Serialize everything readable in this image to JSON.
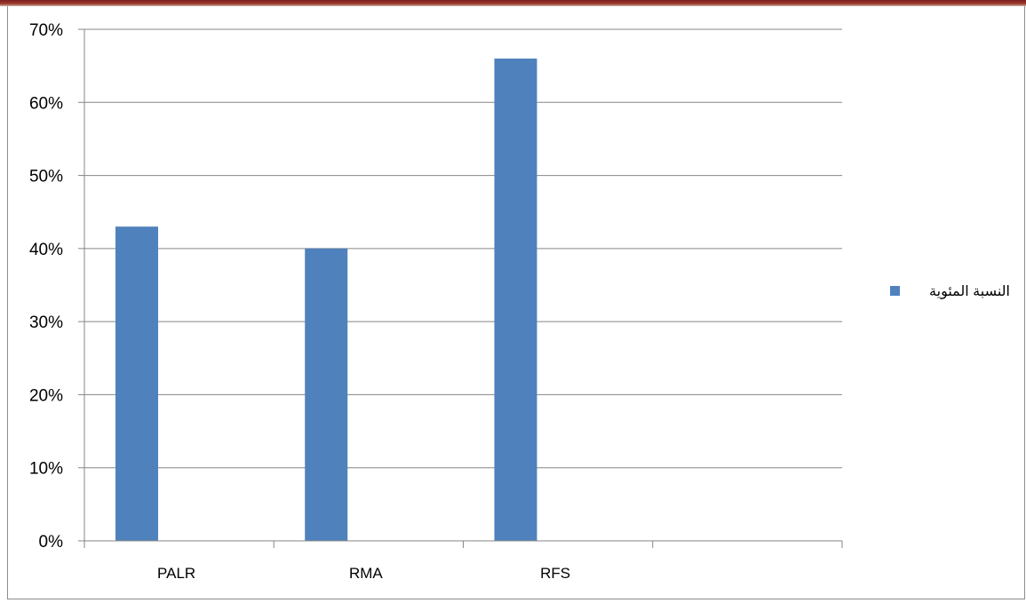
{
  "chart_data": {
    "type": "bar",
    "categories": [
      "PALR",
      "RMA",
      "RFS",
      ""
    ],
    "series": [
      {
        "name": "النسبة المئوية",
        "values": [
          0.43,
          0.4,
          0.66,
          null
        ]
      }
    ],
    "ylim": [
      0,
      0.7
    ],
    "y_ticks": [
      "0%",
      "10%",
      "20%",
      "30%",
      "40%",
      "50%",
      "60%",
      "70%"
    ],
    "grid": true,
    "legend_position": "right",
    "colors": {
      "bar": "#4f81bd",
      "grid": "#868686",
      "axis": "#868686"
    }
  }
}
